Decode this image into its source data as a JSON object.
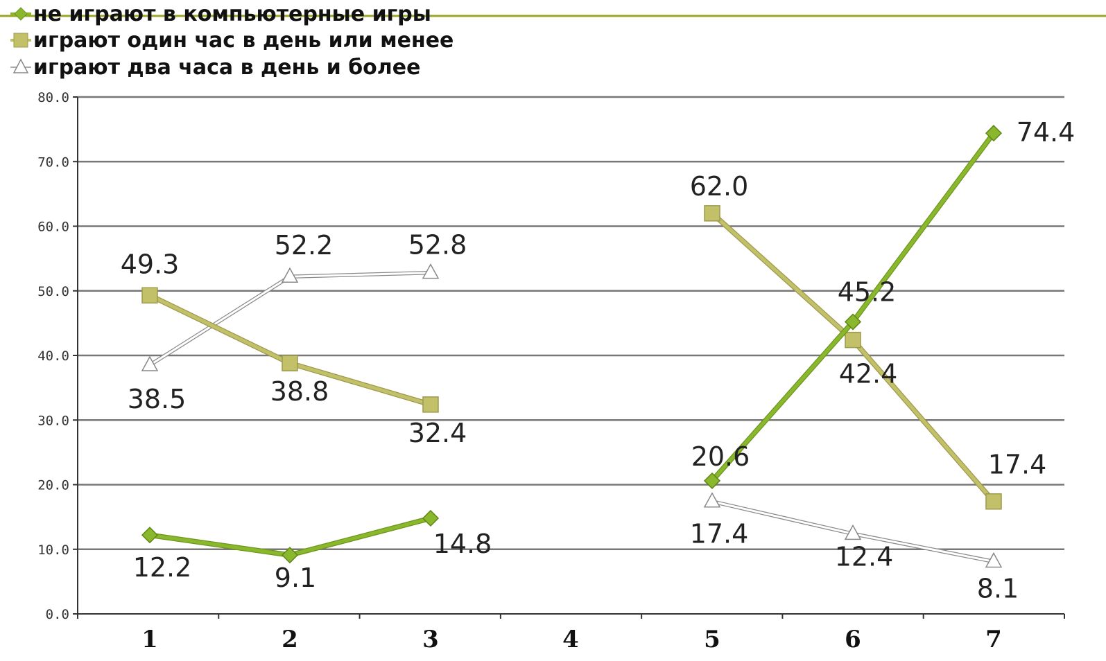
{
  "colors": {
    "series_1": "#8ab82c",
    "series_2": "#c3c06a",
    "series_3": "#ffffff",
    "top_rule": "#9aa52a",
    "grid": "#777777"
  },
  "chart_data": {
    "type": "line",
    "categories": [
      "1",
      "2",
      "3",
      "4",
      "5",
      "6",
      "7"
    ],
    "ylim": [
      0,
      80
    ],
    "yticks": [
      "0.0",
      "10.0",
      "20.0",
      "30.0",
      "40.0",
      "50.0",
      "60.0",
      "70.0",
      "80.0"
    ],
    "grid": true,
    "legend_placement": "top-left",
    "series": [
      {
        "name": "не играют в компьютерные игры",
        "marker": "diamond",
        "values": [
          12.2,
          9.1,
          14.8,
          null,
          20.6,
          45.2,
          74.4
        ],
        "labels": [
          "12.2",
          "9.1",
          "14.8",
          "",
          "20.6",
          "45.2",
          "74.4"
        ]
      },
      {
        "name": "играют один час в день или менее",
        "marker": "square",
        "values": [
          49.3,
          38.8,
          32.4,
          null,
          62.0,
          42.4,
          17.4
        ],
        "labels": [
          "49.3",
          "38.8",
          "32.4",
          "",
          "62.0",
          "42.4",
          "17.4"
        ]
      },
      {
        "name": "играют два часа в день и более",
        "marker": "triangle",
        "values": [
          38.5,
          52.2,
          52.8,
          null,
          17.4,
          12.4,
          8.1
        ],
        "labels": [
          "38.5",
          "52.2",
          "52.8",
          "",
          "17.4",
          "12.4",
          "8.1"
        ]
      }
    ]
  }
}
